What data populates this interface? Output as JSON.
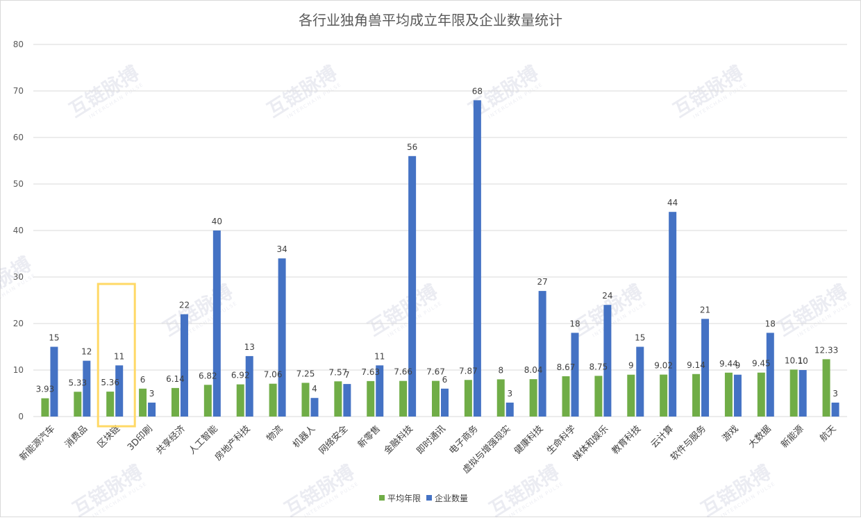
{
  "chart_data": {
    "type": "bar",
    "title": "各行业独角兽平均成立年限及企业数量统计",
    "xlabel": "",
    "ylabel": "",
    "ylim": [
      0,
      80
    ],
    "yticks": [
      0,
      10,
      20,
      30,
      40,
      50,
      60,
      70,
      80
    ],
    "grid": true,
    "legend_position": "bottom",
    "categories": [
      "新能源汽车",
      "消费品",
      "区块链",
      "3D印刷",
      "共享经济",
      "人工智能",
      "房地产科技",
      "物流",
      "机器人",
      "网络安全",
      "新零售",
      "金融科技",
      "即时通讯",
      "电子商务",
      "虚拟与增强现实",
      "健康科技",
      "生命科学",
      "媒体和娱乐",
      "教育科技",
      "云计算",
      "软件与服务",
      "游戏",
      "大数据",
      "新能源",
      "航天"
    ],
    "series": [
      {
        "name": "平均年限",
        "color": "#70ad47",
        "values": [
          3.93,
          5.33,
          5.36,
          6,
          6.14,
          6.82,
          6.92,
          7.06,
          7.25,
          7.57,
          7.63,
          7.66,
          7.67,
          7.87,
          8,
          8.04,
          8.67,
          8.75,
          9,
          9.02,
          9.14,
          9.44,
          9.45,
          10.1,
          12.33
        ]
      },
      {
        "name": "企业数量",
        "color": "#4472c4",
        "values": [
          15,
          12,
          11,
          3,
          22,
          40,
          13,
          34,
          4,
          7,
          11,
          56,
          6,
          68,
          3,
          27,
          18,
          24,
          15,
          44,
          21,
          9,
          18,
          10,
          3
        ]
      }
    ],
    "highlight_category": "区块链",
    "highlight_color": "#ffd966"
  },
  "watermark": {
    "brand": "互链脉搏",
    "sub": "INTERCHAIN PULSE"
  }
}
